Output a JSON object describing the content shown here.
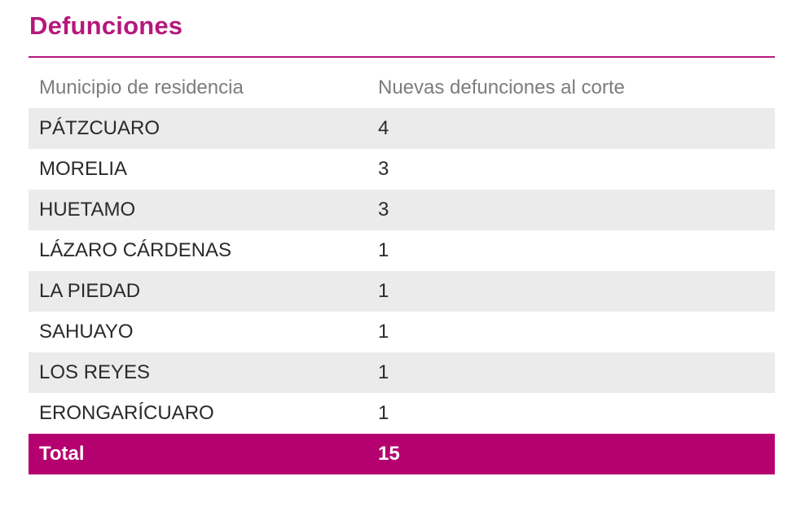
{
  "section": {
    "title": "Defunciones"
  },
  "table": {
    "headers": {
      "municipio": "Municipio de residencia",
      "nuevas": "Nuevas defunciones al corte"
    },
    "rows": [
      {
        "municipio": "PÁTZCUARO",
        "nuevas": "4"
      },
      {
        "municipio": "MORELIA",
        "nuevas": "3"
      },
      {
        "municipio": "HUETAMO",
        "nuevas": "3"
      },
      {
        "municipio": "LÁZARO CÁRDENAS",
        "nuevas": "1"
      },
      {
        "municipio": "LA PIEDAD",
        "nuevas": "1"
      },
      {
        "municipio": "SAHUAYO",
        "nuevas": "1"
      },
      {
        "municipio": "LOS REYES",
        "nuevas": "1"
      },
      {
        "municipio": "ERONGARÍCUARO",
        "nuevas": "1"
      }
    ],
    "total": {
      "label": "Total",
      "value": "15"
    }
  },
  "colors": {
    "accent": "#b5187b",
    "total_bg": "#b5006f",
    "stripe_bg": "#ebebeb"
  }
}
